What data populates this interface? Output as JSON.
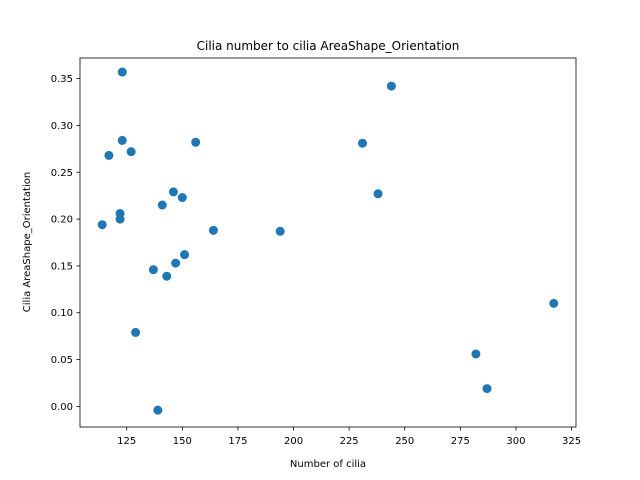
{
  "chart_data": {
    "type": "scatter",
    "title": "Cilia number to cilia AreaShape_Orientation",
    "xlabel": "Number of cilia",
    "ylabel": "Cilia AreaShape_Orientation",
    "xlim": [
      104,
      327
    ],
    "ylim": [
      -0.022,
      0.372
    ],
    "xticks": [
      125,
      150,
      175,
      200,
      225,
      250,
      275,
      300,
      325
    ],
    "xtick_labels": [
      "125",
      "150",
      "175",
      "200",
      "225",
      "250",
      "275",
      "300",
      "325"
    ],
    "yticks": [
      0.0,
      0.05,
      0.1,
      0.15,
      0.2,
      0.25,
      0.3,
      0.35
    ],
    "ytick_labels": [
      "0.00",
      "0.05",
      "0.10",
      "0.15",
      "0.20",
      "0.25",
      "0.30",
      "0.35"
    ],
    "grid": false,
    "color": "#1f77b4",
    "points": [
      {
        "x": 114,
        "y": 0.194
      },
      {
        "x": 117,
        "y": 0.268
      },
      {
        "x": 122,
        "y": 0.206
      },
      {
        "x": 122,
        "y": 0.2
      },
      {
        "x": 123,
        "y": 0.357
      },
      {
        "x": 123,
        "y": 0.284
      },
      {
        "x": 127,
        "y": 0.272
      },
      {
        "x": 129,
        "y": 0.079
      },
      {
        "x": 137,
        "y": 0.146
      },
      {
        "x": 139,
        "y": -0.004
      },
      {
        "x": 141,
        "y": 0.215
      },
      {
        "x": 143,
        "y": 0.139
      },
      {
        "x": 146,
        "y": 0.229
      },
      {
        "x": 147,
        "y": 0.153
      },
      {
        "x": 150,
        "y": 0.223
      },
      {
        "x": 151,
        "y": 0.162
      },
      {
        "x": 156,
        "y": 0.282
      },
      {
        "x": 164,
        "y": 0.188
      },
      {
        "x": 194,
        "y": 0.187
      },
      {
        "x": 231,
        "y": 0.281
      },
      {
        "x": 238,
        "y": 0.227
      },
      {
        "x": 244,
        "y": 0.342
      },
      {
        "x": 282,
        "y": 0.056
      },
      {
        "x": 287,
        "y": 0.019
      },
      {
        "x": 317,
        "y": 0.11
      }
    ]
  }
}
